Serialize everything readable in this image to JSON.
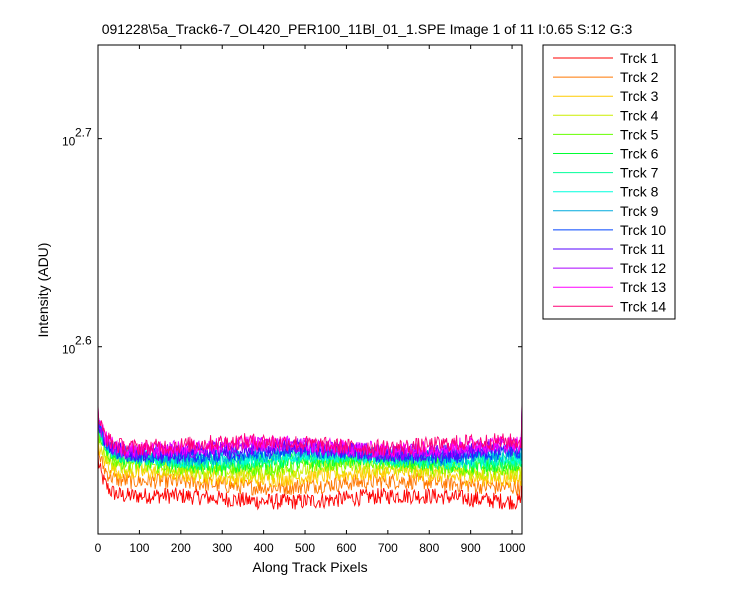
{
  "chart_data": {
    "type": "line",
    "title": "091228\\5a_Track6-7_OL420_PER100_11Bl_01_1.SPE  Image 1 of 11  I:0.65  S:12  G:3",
    "xlabel": "Along Track Pixels",
    "ylabel": "Intensity (ADU)",
    "xlim": [
      0,
      1024
    ],
    "ylim_log10": [
      2.51,
      2.745
    ],
    "y_scale": "log",
    "x_ticks": [
      0,
      100,
      200,
      300,
      400,
      500,
      600,
      700,
      800,
      900,
      1000
    ],
    "y_ticks": [
      {
        "base": "10",
        "exp": "2.6",
        "log10": 2.6
      },
      {
        "base": "10",
        "exp": "2.7",
        "log10": 2.7
      }
    ],
    "legend_position": "outside-right-top",
    "series": [
      {
        "name": "Trck 1",
        "color": "#ff0000",
        "level_log10": 2.527,
        "start_log10": 2.545
      },
      {
        "name": "Trck 2",
        "color": "#ff7700",
        "level_log10": 2.534,
        "start_log10": 2.55
      },
      {
        "name": "Trck 3",
        "color": "#ffcc00",
        "level_log10": 2.538,
        "start_log10": 2.553
      },
      {
        "name": "Trck 4",
        "color": "#ccee00",
        "level_log10": 2.541,
        "start_log10": 2.556
      },
      {
        "name": "Trck 5",
        "color": "#66ff00",
        "level_log10": 2.543,
        "start_log10": 2.558
      },
      {
        "name": "Trck 6",
        "color": "#00ff33",
        "level_log10": 2.545,
        "start_log10": 2.56
      },
      {
        "name": "Trck 7",
        "color": "#00ff99",
        "level_log10": 2.546,
        "start_log10": 2.561
      },
      {
        "name": "Trck 8",
        "color": "#00ffdd",
        "level_log10": 2.547,
        "start_log10": 2.562
      },
      {
        "name": "Trck 9",
        "color": "#00aadd",
        "level_log10": 2.548,
        "start_log10": 2.563
      },
      {
        "name": "Trck 10",
        "color": "#0044ff",
        "level_log10": 2.549,
        "start_log10": 2.564
      },
      {
        "name": "Trck 11",
        "color": "#5500ff",
        "level_log10": 2.55,
        "start_log10": 2.565
      },
      {
        "name": "Trck 12",
        "color": "#aa00ff",
        "level_log10": 2.551,
        "start_log10": 2.566
      },
      {
        "name": "Trck 13",
        "color": "#ff00ff",
        "level_log10": 2.552,
        "start_log10": 2.567
      },
      {
        "name": "Trck 14",
        "color": "#ff0077",
        "level_log10": 2.553,
        "start_log10": 2.568
      }
    ]
  }
}
